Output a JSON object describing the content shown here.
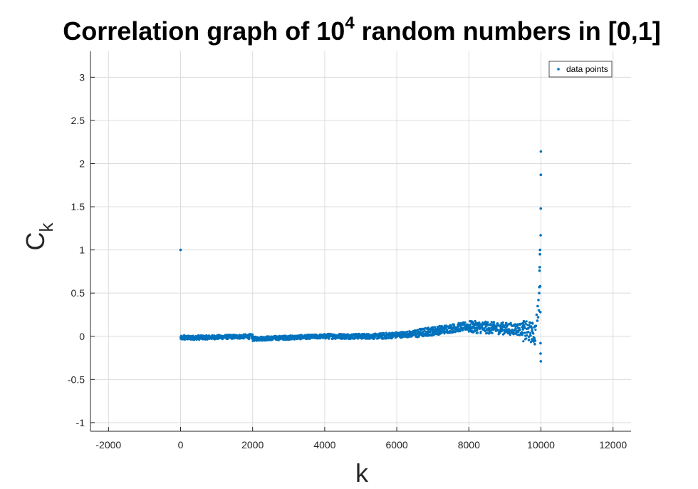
{
  "chart_data": {
    "type": "scatter",
    "title": "Correlation graph of 10",
    "title_superscript": "4",
    "title_suffix": " random numbers in [0,1]",
    "xlabel": "k",
    "ylabel": "C",
    "ylabel_subscript": "k",
    "xlim": [
      -2500,
      12500
    ],
    "ylim": [
      -1.1,
      3.3
    ],
    "xticks": [
      -2000,
      0,
      2000,
      4000,
      6000,
      8000,
      10000,
      12000
    ],
    "xtick_labels": [
      "-2000",
      "0",
      "2000",
      "4000",
      "6000",
      "8000",
      "10000",
      "12000"
    ],
    "yticks": [
      -1,
      -0.5,
      0,
      0.5,
      1,
      1.5,
      2,
      2.5,
      3
    ],
    "ytick_labels": [
      "-1",
      "-0.5",
      "0",
      "0.5",
      "1",
      "1.5",
      "2",
      "2.5",
      "3"
    ],
    "grid": true,
    "legend_position": "top-right",
    "series": [
      {
        "name": "data points",
        "color": "#0072BD",
        "marker": "dot",
        "points": [
          [
            0,
            1.0
          ],
          [
            100,
            0.01
          ],
          [
            300,
            0.0
          ],
          [
            500,
            0.01
          ],
          [
            700,
            0.0
          ],
          [
            900,
            -0.01
          ],
          [
            1100,
            -0.01
          ],
          [
            1300,
            -0.01
          ],
          [
            1500,
            -0.02
          ],
          [
            1700,
            -0.02
          ],
          [
            1900,
            -0.03
          ],
          [
            2100,
            -0.03
          ],
          [
            2300,
            -0.03
          ],
          [
            2500,
            -0.02
          ],
          [
            2700,
            -0.02
          ],
          [
            2900,
            -0.02
          ],
          [
            3100,
            -0.01
          ],
          [
            3300,
            -0.01
          ],
          [
            3500,
            -0.01
          ],
          [
            3700,
            -0.01
          ],
          [
            3900,
            0.0
          ],
          [
            4100,
            0.0
          ],
          [
            4300,
            0.0
          ],
          [
            4500,
            0.0
          ],
          [
            4700,
            0.0
          ],
          [
            4900,
            0.0
          ],
          [
            5100,
            0.0
          ],
          [
            5300,
            0.0
          ],
          [
            5500,
            -0.01
          ],
          [
            5700,
            0.0
          ],
          [
            5900,
            0.01
          ],
          [
            6100,
            0.01
          ],
          [
            6300,
            0.02
          ],
          [
            6500,
            0.03
          ],
          [
            6700,
            0.04
          ],
          [
            6900,
            0.05
          ],
          [
            7100,
            0.06
          ],
          [
            7300,
            0.08
          ],
          [
            7500,
            0.09
          ],
          [
            7700,
            0.11
          ],
          [
            7900,
            0.12
          ],
          [
            8100,
            0.11
          ],
          [
            8300,
            0.09
          ],
          [
            8500,
            0.08
          ],
          [
            8700,
            0.09
          ],
          [
            8900,
            0.08
          ],
          [
            9100,
            0.08
          ],
          [
            9300,
            0.09
          ],
          [
            9500,
            0.08
          ],
          [
            9650,
            0.05
          ],
          [
            9750,
            0.06
          ],
          [
            9800,
            -0.05
          ],
          [
            9830,
            -0.09
          ],
          [
            9860,
            0.12
          ],
          [
            9880,
            0.25
          ],
          [
            9900,
            0.18
          ],
          [
            9910,
            0.35
          ],
          [
            9920,
            0.22
          ],
          [
            9930,
            0.42
          ],
          [
            9940,
            0.3
          ],
          [
            9950,
            0.5
          ],
          [
            9955,
            0.57
          ],
          [
            9960,
            0.76
          ],
          [
            9965,
            0.8
          ],
          [
            9970,
            0.95
          ],
          [
            9975,
            1.0
          ],
          [
            9980,
            0.58
          ],
          [
            9985,
            0.28
          ],
          [
            9988,
            -0.08
          ],
          [
            9990,
            -0.2
          ],
          [
            9993,
            1.17
          ],
          [
            9995,
            1.48
          ],
          [
            9997,
            1.87
          ],
          [
            9999,
            2.14
          ],
          [
            9996,
            -0.29
          ]
        ],
        "bands": [
          {
            "x_from": 0,
            "x_to": 2000,
            "y_from": -0.02,
            "y_to": 0.0,
            "spread": 0.025
          },
          {
            "x_from": 2000,
            "x_to": 4000,
            "y_from": -0.03,
            "y_to": 0.0,
            "spread": 0.025
          },
          {
            "x_from": 4000,
            "x_to": 5500,
            "y_from": 0.0,
            "y_to": 0.0,
            "spread": 0.03
          },
          {
            "x_from": 5500,
            "x_to": 6500,
            "y_from": 0.0,
            "y_to": 0.03,
            "spread": 0.035
          },
          {
            "x_from": 6500,
            "x_to": 8000,
            "y_from": 0.03,
            "y_to": 0.12,
            "spread": 0.05
          },
          {
            "x_from": 8000,
            "x_to": 9500,
            "y_from": 0.11,
            "y_to": 0.08,
            "spread": 0.07
          },
          {
            "x_from": 9500,
            "x_to": 9850,
            "y_from": 0.06,
            "y_to": 0.04,
            "spread": 0.12
          }
        ]
      }
    ]
  }
}
